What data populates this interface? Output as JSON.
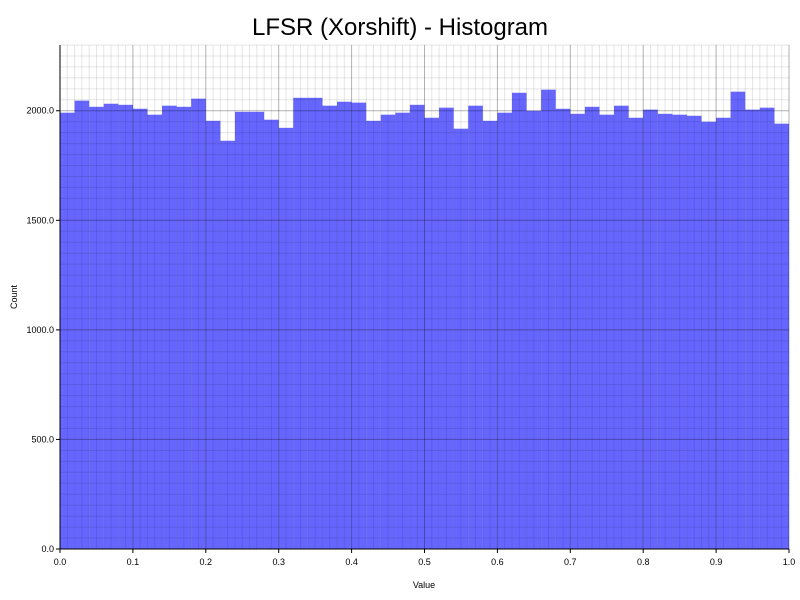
{
  "chart_data": {
    "type": "bar",
    "title": "LFSR (Xorshift) - Histogram",
    "xlabel": "Value",
    "ylabel": "Count",
    "xlim": [
      0.0,
      1.0
    ],
    "ylim": [
      0,
      2300
    ],
    "bin_width": 0.02,
    "xticks": [
      "0.0",
      "0.1",
      "0.2",
      "0.3",
      "0.4",
      "0.5",
      "0.6",
      "0.7",
      "0.8",
      "0.9",
      "1.0"
    ],
    "yticks": [
      "0.0",
      "500.0",
      "1000.0",
      "1500.0",
      "2000.0"
    ],
    "grid": true,
    "bar_color": "#6666ff",
    "values": [
      1991,
      2046,
      2018,
      2032,
      2027,
      2009,
      1982,
      2023,
      2018,
      2055,
      1954,
      1863,
      1995,
      1995,
      1959,
      1922,
      2059,
      2059,
      2023,
      2041,
      2037,
      1954,
      1982,
      1991,
      2027,
      1968,
      2014,
      1918,
      2023,
      1954,
      1991,
      2082,
      2000,
      2096,
      2009,
      1986,
      2018,
      1982,
      2023,
      1968,
      2005,
      1986,
      1982,
      1977,
      1950,
      1968,
      2087,
      2005,
      2014,
      1941
    ]
  }
}
